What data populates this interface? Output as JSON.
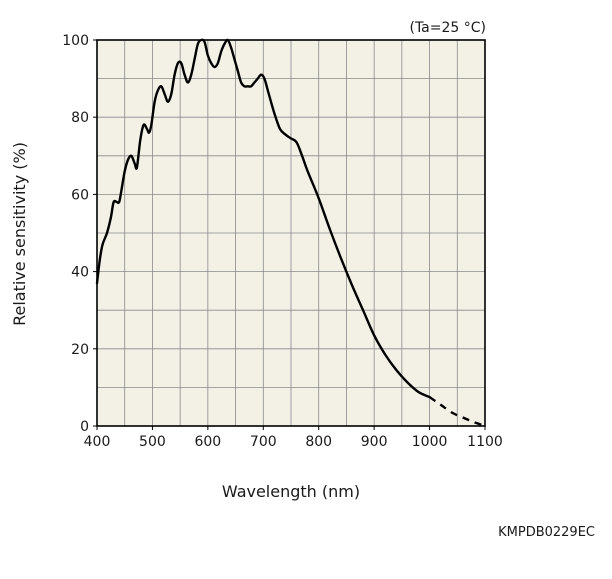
{
  "chart_data": {
    "type": "line",
    "condition": "(Ta=25 °C)",
    "xlabel": "Wavelength (nm)",
    "ylabel": "Relative sensitivity (%)",
    "xlim": [
      400,
      1100
    ],
    "ylim": [
      0,
      100
    ],
    "xticks": [
      400,
      500,
      600,
      700,
      800,
      900,
      1000,
      1100
    ],
    "yticks": [
      0,
      20,
      40,
      60,
      80,
      100
    ],
    "x_minor_step": 50,
    "y_minor_step": 10,
    "grid": true,
    "plot_background": "#f3f0e6",
    "line_color": "#000000",
    "series": [
      {
        "style": "solid",
        "x": [
          400,
          405,
          410,
          418,
          425,
          430,
          436,
          440,
          444,
          450,
          456,
          462,
          468,
          472,
          478,
          484,
          490,
          494,
          498,
          504,
          510,
          516,
          522,
          528,
          534,
          540,
          546,
          552,
          558,
          564,
          570,
          576,
          582,
          588,
          594,
          600,
          606,
          612,
          618,
          624,
          630,
          636,
          642,
          648,
          654,
          660,
          666,
          672,
          678,
          684,
          690,
          696,
          702,
          710,
          720,
          730,
          740,
          750,
          760,
          770,
          780,
          800,
          820,
          840,
          860,
          880,
          900,
          920,
          940,
          960,
          980,
          1000
        ],
        "y": [
          37,
          43,
          47,
          50,
          54,
          58,
          58,
          58,
          61,
          66,
          69,
          70,
          68,
          67,
          74,
          78,
          77,
          76,
          78,
          84,
          87,
          88,
          86,
          84,
          86,
          91,
          94,
          94,
          91,
          89,
          91,
          95,
          99,
          100,
          99.5,
          96,
          94,
          93,
          94,
          97,
          99,
          100,
          98,
          95,
          92,
          89,
          88,
          88,
          88,
          89,
          90,
          91,
          90,
          86,
          81,
          77,
          75.5,
          74.5,
          73.5,
          70,
          66,
          59,
          51,
          43.5,
          36.5,
          30,
          23.5,
          18.5,
          14.5,
          11.3,
          8.8,
          7.5
        ]
      },
      {
        "style": "dashed",
        "x": [
          1000,
          1020,
          1040,
          1060,
          1080,
          1100
        ],
        "y": [
          7.5,
          5.5,
          3.5,
          2.2,
          1.0,
          0
        ]
      }
    ]
  },
  "footer": {
    "code": "KMPDB0229EC"
  }
}
